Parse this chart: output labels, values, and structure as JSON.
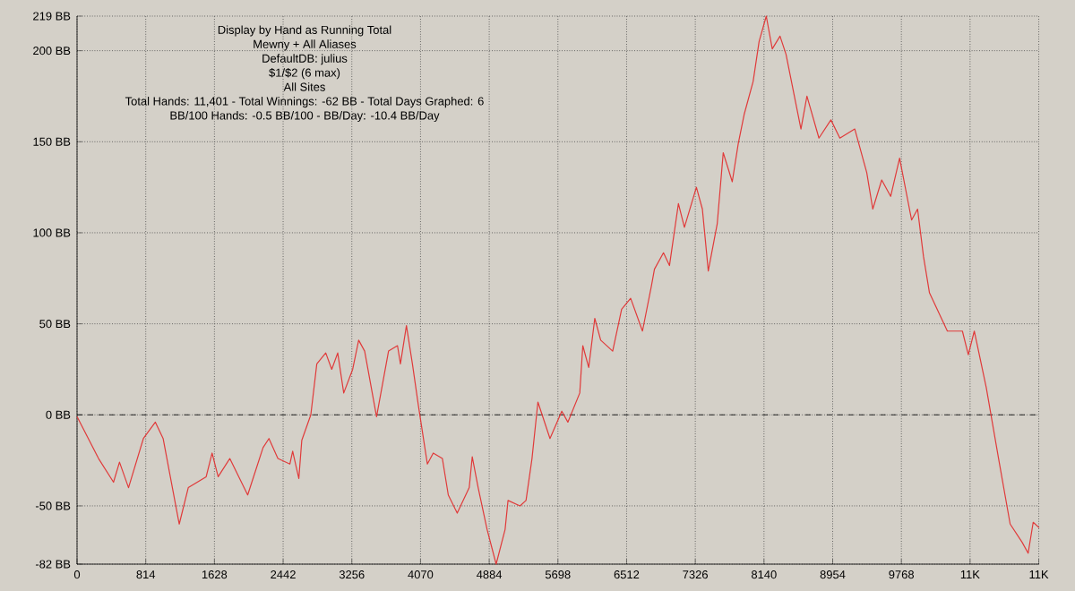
{
  "chart_data": {
    "type": "line",
    "annotations": [
      "Display by Hand as Running Total",
      "Mewny + All Aliases",
      "DefaultDB: julius",
      "$1/$2 (6 max)",
      "All Sites",
      "Total Hands: 11,401 - Total Winnings: -62 BB - Total Days Graphed: 6",
      "BB/100 Hands: -0.5 BB/100 - BB/Day: -10.4 BB/Day"
    ],
    "x": [
      0,
      255,
      432,
      503,
      610,
      786,
      928,
      1020,
      1211,
      1318,
      1530,
      1600,
      1672,
      1810,
      2022,
      2204,
      2274,
      2380,
      2522,
      2555,
      2628,
      2663,
      2770,
      2841,
      2947,
      3018,
      3089,
      3160,
      3266,
      3337,
      3408,
      3549,
      3691,
      3797,
      3832,
      3903,
      3974,
      4045,
      4151,
      4221,
      4329,
      4399,
      4505,
      4647,
      4683,
      4753,
      4859,
      4966,
      5072,
      5107,
      5249,
      5320,
      5391,
      5461,
      5604,
      5744,
      5816,
      5957,
      5993,
      6063,
      6135,
      6205,
      6347,
      6453,
      6560,
      6700,
      6807,
      6842,
      6949,
      7020,
      7126,
      7197,
      7339,
      7410,
      7480,
      7586,
      7657,
      7764,
      7835,
      7905,
      8011,
      8082,
      8167,
      8238,
      8330,
      8401,
      8578,
      8649,
      8791,
      8933,
      9039,
      9216,
      9358,
      9429,
      9535,
      9641,
      9747,
      9889,
      9960,
      10030,
      10101,
      10313,
      10491,
      10561,
      10632,
      10774,
      10916,
      11057,
      11199,
      11270,
      11330,
      11401
    ],
    "series": [
      {
        "color": "#e03a3a",
        "values": [
          -1,
          -24,
          -37,
          -26,
          -40,
          -13,
          -4,
          -13,
          -60,
          -40,
          -34,
          -21,
          -34,
          -24,
          -44,
          -18,
          -13,
          -24,
          -27,
          -20,
          -35,
          -14,
          0,
          28,
          34,
          25,
          34,
          12,
          25,
          41,
          35,
          -1,
          35,
          38,
          28,
          49,
          28,
          5,
          -27,
          -21,
          -24,
          -44,
          -54,
          -40,
          -23,
          -40,
          -63,
          -82,
          -63,
          -47,
          -50,
          -47,
          -24,
          7,
          -13,
          2,
          -4,
          12,
          38,
          26,
          53,
          41,
          35,
          58,
          64,
          46,
          71,
          80,
          89,
          82,
          116,
          103,
          125,
          113,
          79,
          105,
          144,
          128,
          149,
          165,
          183,
          205,
          219,
          201,
          208,
          198,
          157,
          175,
          152,
          162,
          152,
          157,
          133,
          113,
          129,
          120,
          141,
          107,
          113,
          87,
          67,
          46,
          46,
          33,
          46,
          15,
          -23,
          -60,
          -70,
          -76,
          -59,
          -62
        ]
      }
    ],
    "xlim": [
      0,
      11401
    ],
    "ylim": [
      -82,
      219
    ],
    "xticks": [
      0,
      814,
      1628,
      2442,
      3256,
      4070,
      4884,
      5698,
      6512,
      7326,
      8140,
      8954,
      9768,
      {
        "value": 10582,
        "label": "11K"
      },
      {
        "value": 11396,
        "label": "11K"
      }
    ],
    "yticks": [
      {
        "value": -82,
        "label": "-82 BB"
      },
      {
        "value": -50,
        "label": "-50 BB"
      },
      {
        "value": 0,
        "label": "0 BB"
      },
      {
        "value": 50,
        "label": "50 BB"
      },
      {
        "value": 100,
        "label": "100 BB"
      },
      {
        "value": 150,
        "label": "150 BB"
      },
      {
        "value": 200,
        "label": "200 BB"
      },
      {
        "value": 219,
        "label": "219 BB"
      }
    ],
    "grid": true,
    "ref_lines": [
      {
        "axis": "y",
        "value": 0,
        "line_style": "dashed"
      }
    ],
    "line_style": "solid"
  }
}
